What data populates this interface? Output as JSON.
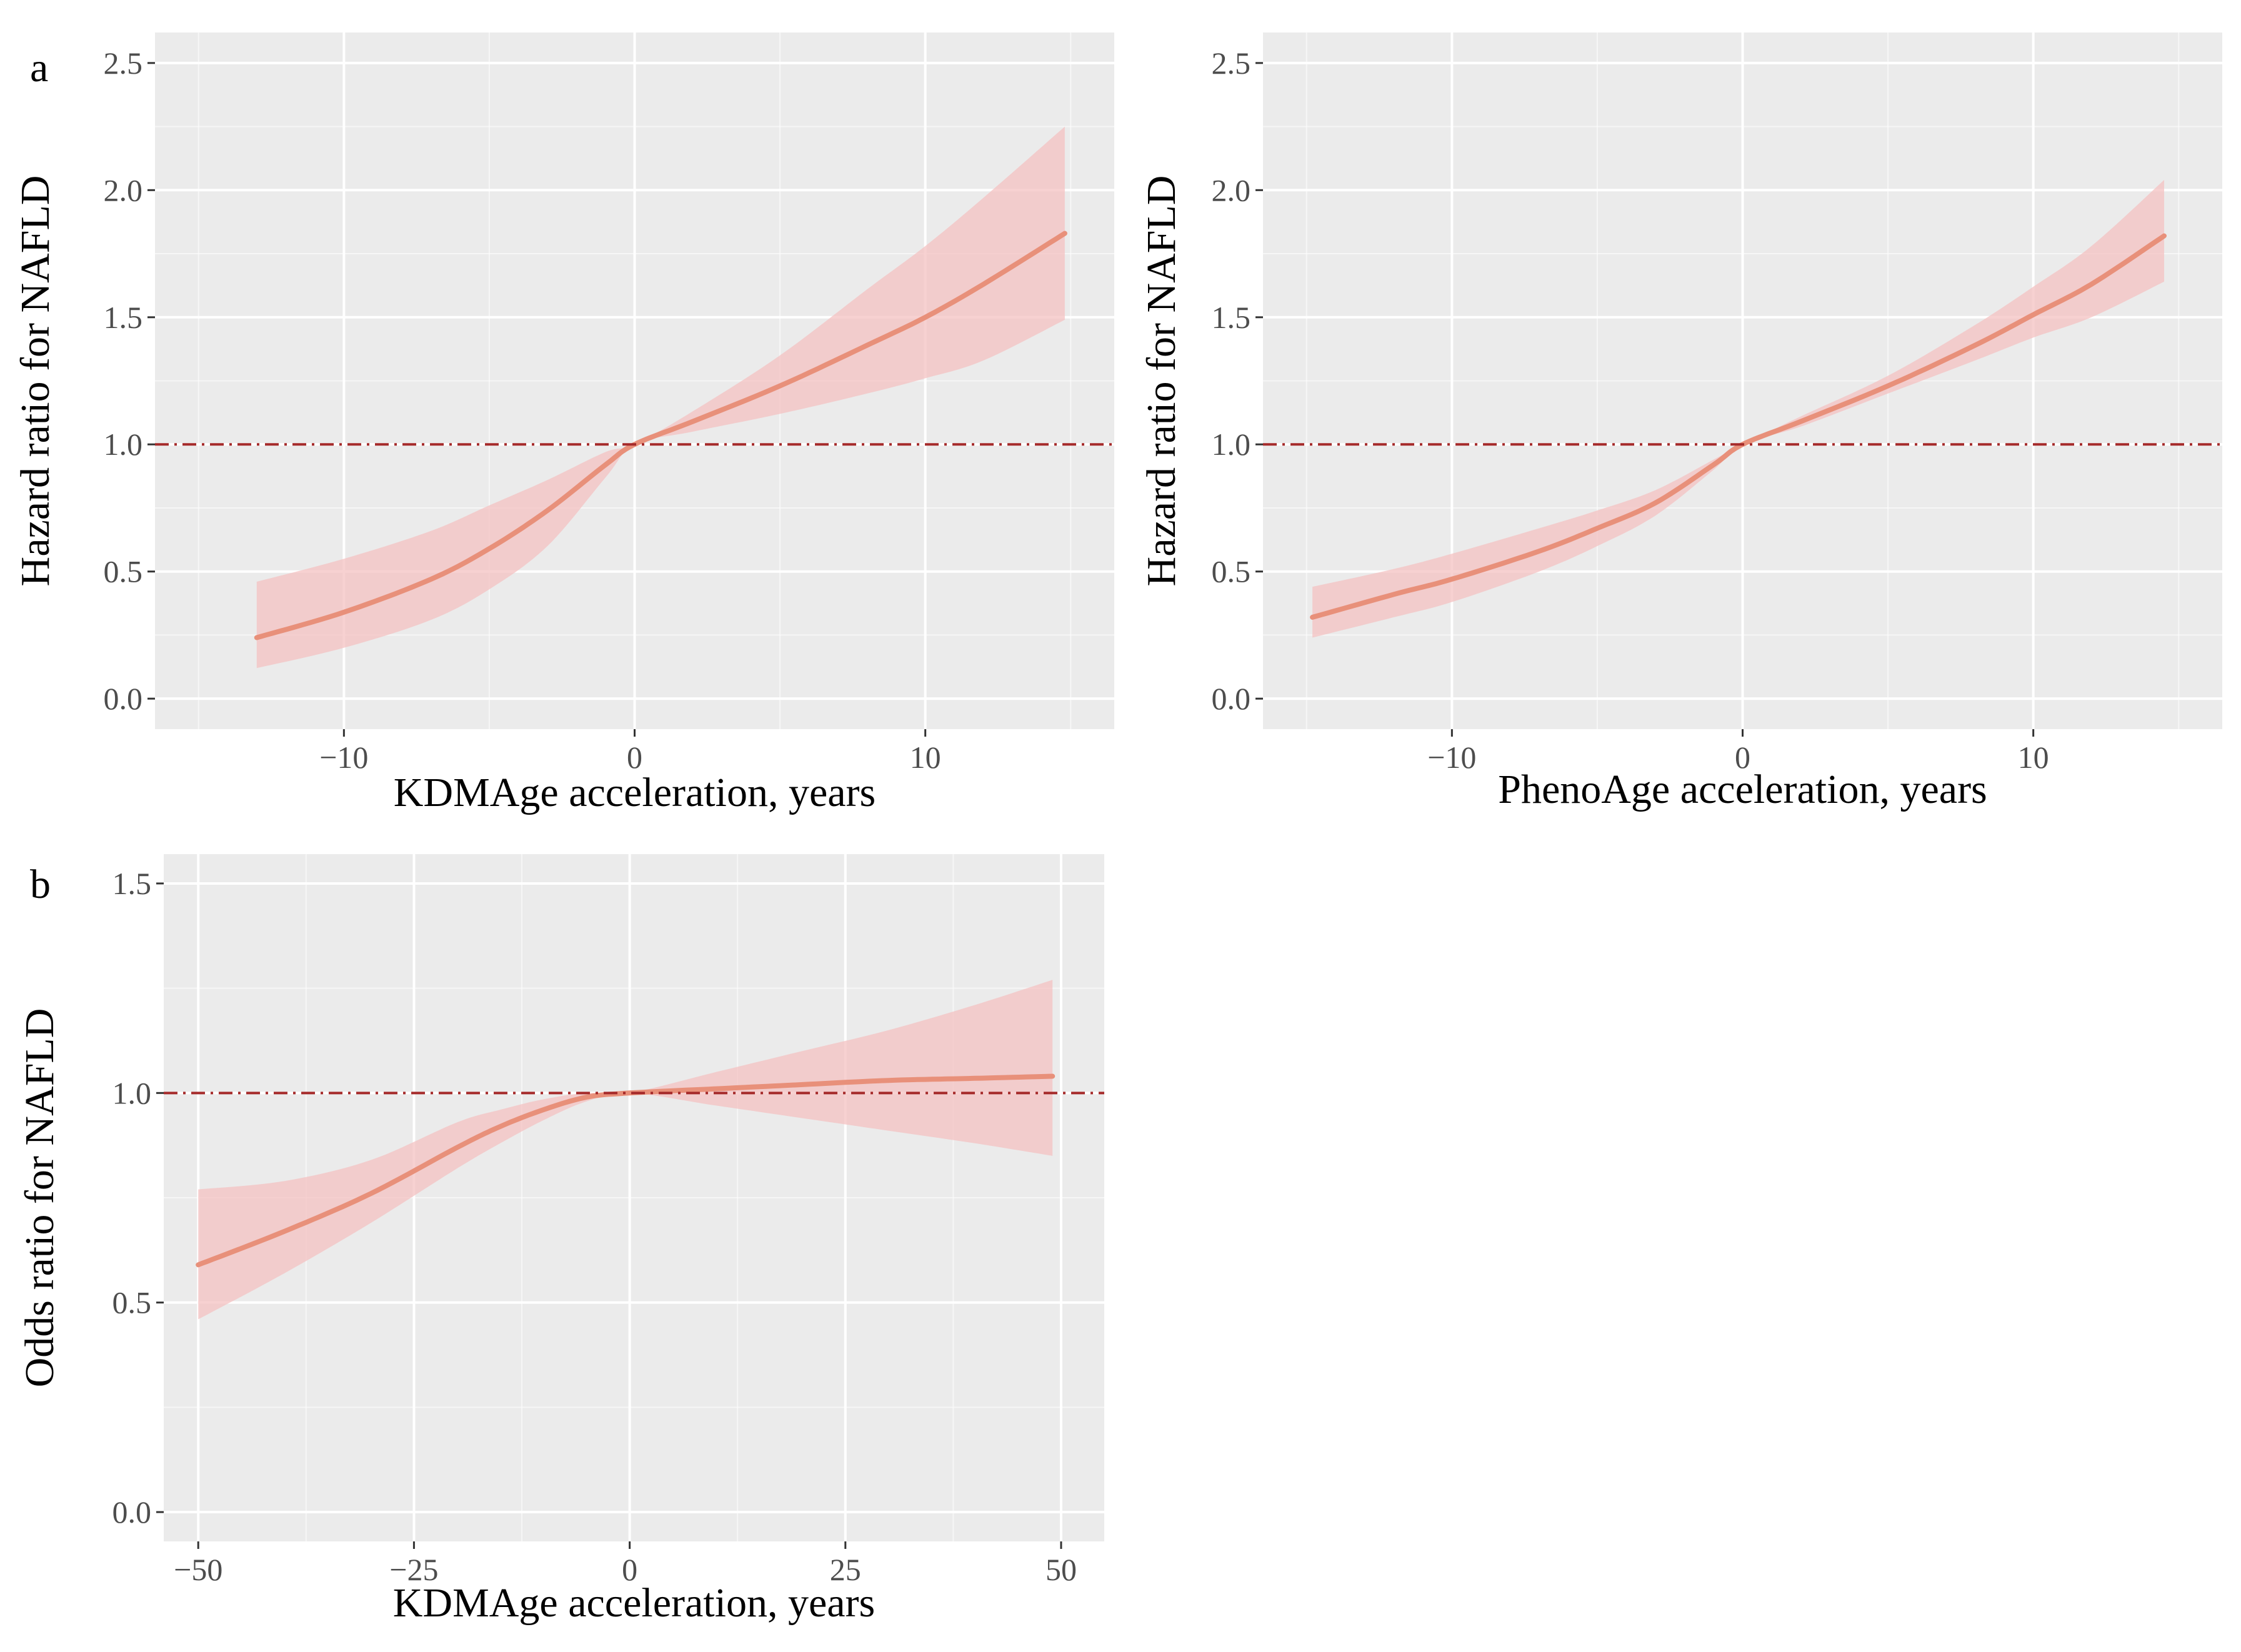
{
  "colors": {
    "panel_background": "#EBEBEB",
    "grid": "#FFFFFF",
    "line": "#E8907A",
    "band": "#F4C2C2",
    "reference_line": "#A52A2A",
    "tick_text": "#4D4D4D",
    "title_text": "#000000"
  },
  "chart_data": [
    {
      "id": "kdm-hr",
      "panel_label": "a",
      "type": "line",
      "xlabel": "KDMAge acceleration, years",
      "ylabel": "Hazard ratio for NAFLD",
      "xlim": [
        -16.5,
        16.5
      ],
      "ylim": [
        -0.12,
        2.62
      ],
      "xticks": [
        -10,
        0,
        10
      ],
      "xtick_labels": [
        "−10",
        "0",
        "10"
      ],
      "yticks": [
        0.0,
        0.5,
        1.0,
        1.5,
        2.0,
        2.5
      ],
      "ytick_labels": [
        "0.0",
        "0.5",
        "1.0",
        "1.5",
        "2.0",
        "2.5"
      ],
      "reference_line": {
        "y": 1.0,
        "style": "dashdot"
      },
      "series": [
        {
          "name": "Hazard ratio",
          "x": [
            -13,
            -10,
            -7,
            -5,
            -3,
            -1,
            0,
            2,
            5,
            8,
            10,
            12,
            14.8
          ],
          "y": [
            0.24,
            0.34,
            0.47,
            0.59,
            0.74,
            0.92,
            1.0,
            1.09,
            1.23,
            1.39,
            1.5,
            1.63,
            1.83
          ],
          "lower": [
            0.12,
            0.2,
            0.31,
            0.43,
            0.6,
            0.87,
            1.0,
            1.05,
            1.12,
            1.2,
            1.26,
            1.33,
            1.49
          ],
          "upper": [
            0.46,
            0.55,
            0.66,
            0.76,
            0.86,
            0.97,
            1.0,
            1.13,
            1.35,
            1.61,
            1.78,
            1.97,
            2.25
          ]
        }
      ]
    },
    {
      "id": "pheno-hr",
      "panel_label": "",
      "type": "line",
      "xlabel": "PhenoAge acceleration, years",
      "ylabel": "Hazard ratio for NAFLD",
      "xlim": [
        -16.5,
        16.5
      ],
      "ylim": [
        -0.12,
        2.62
      ],
      "xticks": [
        -10,
        0,
        10
      ],
      "xtick_labels": [
        "−10",
        "0",
        "10"
      ],
      "yticks": [
        0.0,
        0.5,
        1.0,
        1.5,
        2.0,
        2.5
      ],
      "ytick_labels": [
        "0.0",
        "0.5",
        "1.0",
        "1.5",
        "2.0",
        "2.5"
      ],
      "reference_line": {
        "y": 1.0,
        "style": "dashdot"
      },
      "series": [
        {
          "name": "Hazard ratio",
          "x": [
            -14.8,
            -12,
            -10,
            -7,
            -5,
            -3,
            -1,
            0,
            2,
            5,
            8,
            10,
            12,
            14.5
          ],
          "y": [
            0.32,
            0.41,
            0.47,
            0.58,
            0.67,
            0.77,
            0.92,
            1.0,
            1.09,
            1.23,
            1.39,
            1.51,
            1.63,
            1.82
          ],
          "lower": [
            0.24,
            0.32,
            0.38,
            0.5,
            0.6,
            0.72,
            0.9,
            1.0,
            1.07,
            1.2,
            1.33,
            1.42,
            1.5,
            1.64
          ],
          "upper": [
            0.44,
            0.51,
            0.57,
            0.67,
            0.74,
            0.82,
            0.94,
            1.0,
            1.11,
            1.27,
            1.47,
            1.62,
            1.78,
            2.04
          ]
        }
      ]
    },
    {
      "id": "kdm-or",
      "panel_label": "b",
      "type": "line",
      "xlabel": "KDMAge acceleration, years",
      "ylabel": "Odds ratio for NAFLD",
      "xlim": [
        -54,
        55
      ],
      "ylim": [
        -0.07,
        1.57
      ],
      "xticks": [
        -50,
        -25,
        0,
        25,
        50
      ],
      "xtick_labels": [
        "−50",
        "−25",
        "0",
        "25",
        "50"
      ],
      "yticks": [
        0.0,
        0.5,
        1.0,
        1.5
      ],
      "ytick_labels": [
        "0.0",
        "0.5",
        "1.0",
        "1.5"
      ],
      "reference_line": {
        "y": 1.0,
        "style": "dashdot"
      },
      "series": [
        {
          "name": "Odds ratio",
          "x": [
            -50,
            -40,
            -30,
            -20,
            -15,
            -10,
            -5,
            0,
            10,
            20,
            30,
            40,
            49
          ],
          "y": [
            0.59,
            0.67,
            0.76,
            0.87,
            0.92,
            0.96,
            0.99,
            1.0,
            1.01,
            1.02,
            1.03,
            1.035,
            1.04
          ],
          "lower": [
            0.46,
            0.57,
            0.69,
            0.82,
            0.88,
            0.935,
            0.98,
            1.0,
            0.97,
            0.94,
            0.91,
            0.88,
            0.85
          ],
          "upper": [
            0.77,
            0.79,
            0.84,
            0.93,
            0.96,
            0.985,
            1.0,
            1.0,
            1.05,
            1.1,
            1.15,
            1.21,
            1.27
          ]
        }
      ]
    }
  ]
}
